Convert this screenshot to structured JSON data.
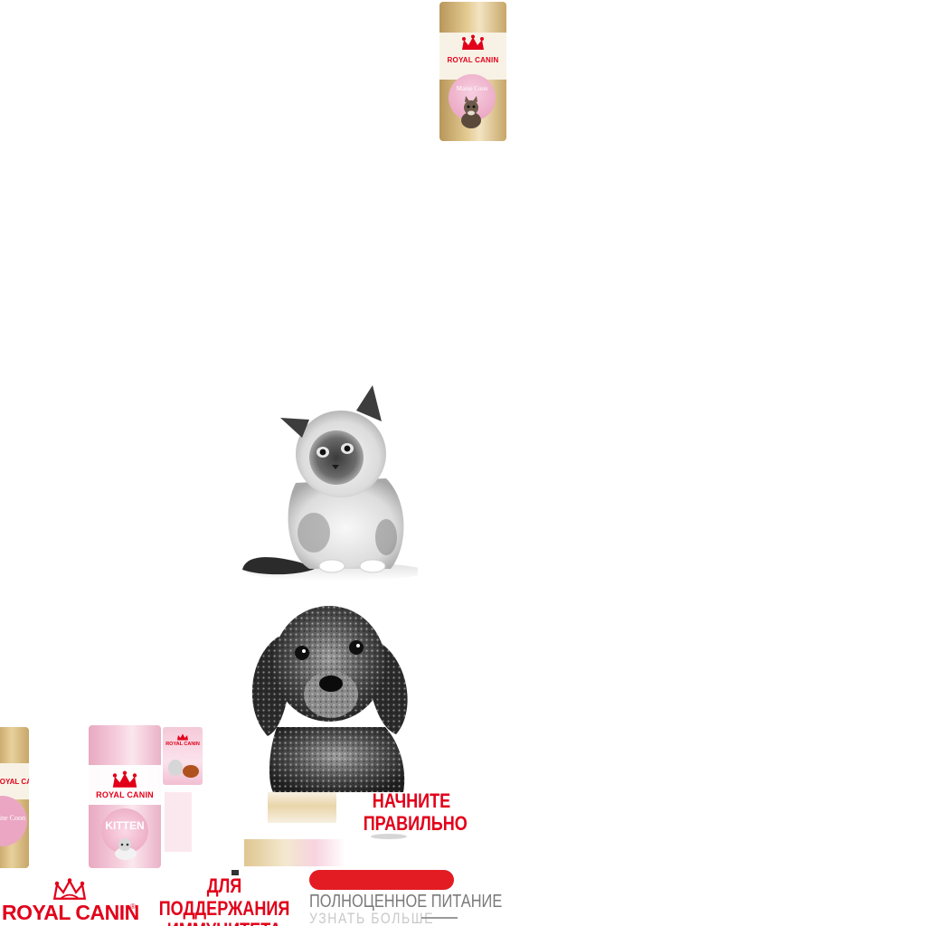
{
  "brand": {
    "name": "ROYAL CANIN",
    "registered_mark": "®",
    "color": "#e2001a"
  },
  "products": {
    "top_bag": {
      "brand_label": "ROYAL CANIN",
      "variant_label": "Maine Coon"
    },
    "left_bag": {
      "brand_label": "ROYAL CANIN",
      "variant_label": "Maine Coon"
    },
    "kitten_bag": {
      "brand_label": "ROYAL CANIN",
      "variant_label": "KITTEN"
    },
    "pouch": {
      "brand_label": "ROYAL CANIN"
    }
  },
  "banner": {
    "headline_start": "НАЧНИТЕ\nПРАВИЛЬНО",
    "headline_immunity": "ДЛЯ ПОДДЕРЖАНИЯ\nИММУНИТЕТА",
    "subtitle": "ПОЛНОЦЕННОЕ ПИТАНИЕ",
    "cta_label": "УЗНАТЬ БОЛЬШЕ"
  },
  "colors": {
    "accent_red": "#e2001a",
    "cta_red": "#e31c23",
    "bag_gold": "#c9a86a",
    "bag_cream": "#f3e7cf",
    "bag_pink": "#f2bcd0",
    "text_gray": "#7a7a7a"
  }
}
